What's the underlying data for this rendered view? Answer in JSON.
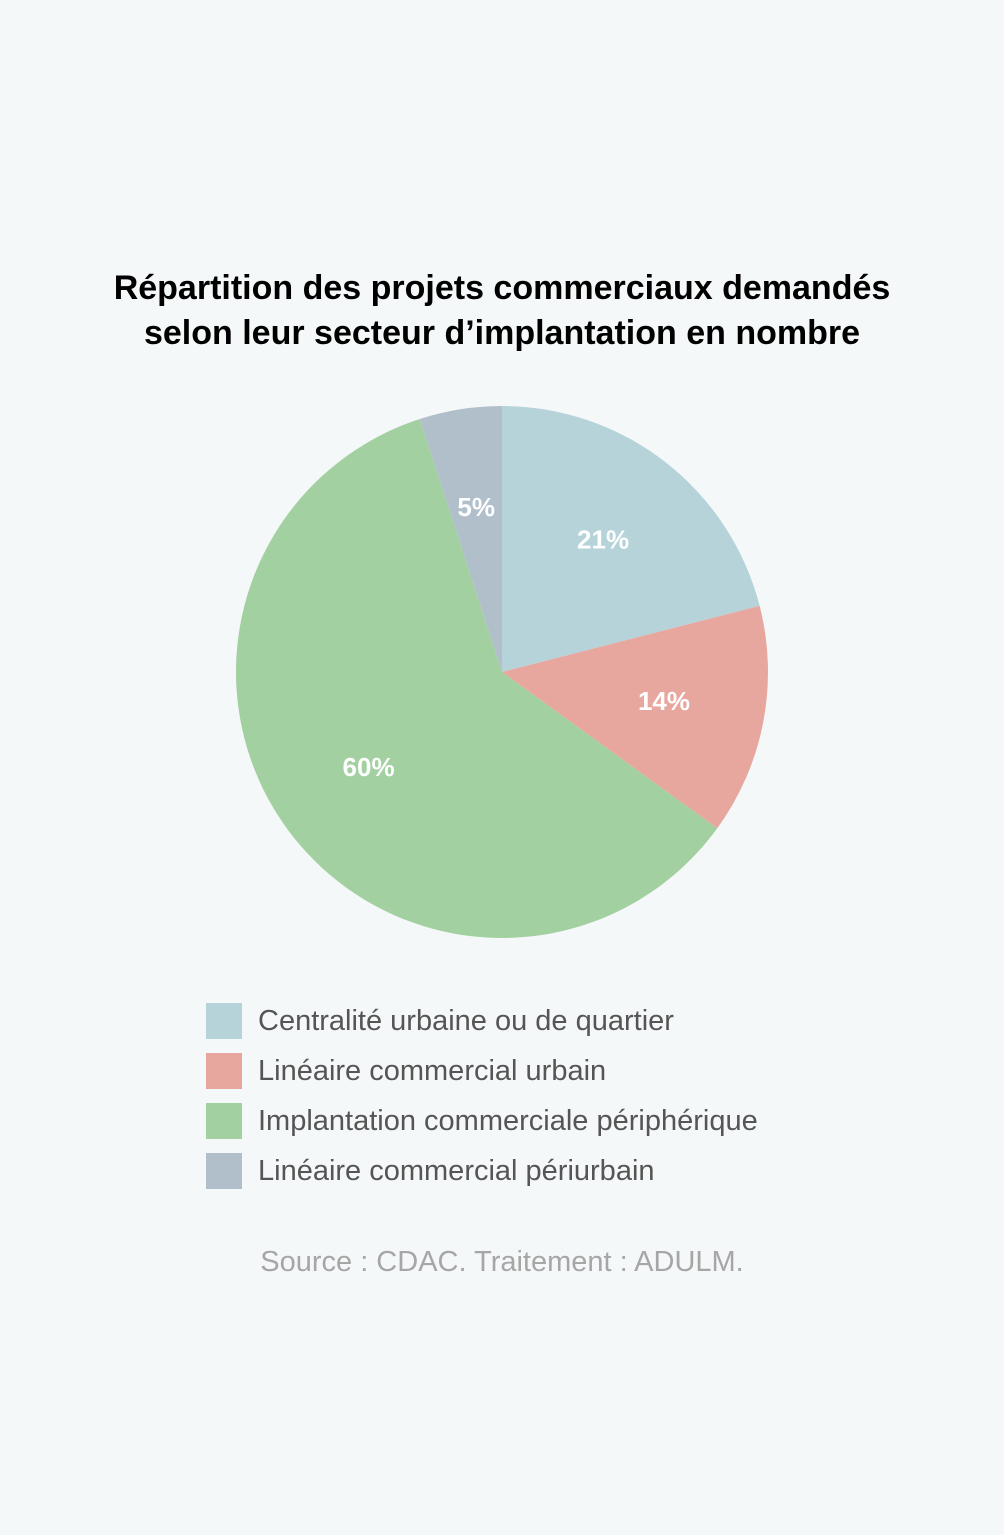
{
  "chart_data": {
    "type": "pie",
    "title_lines": [
      "Répartition des projets commerciaux demandés",
      "selon leur secteur d’implantation en nombre"
    ],
    "slices": [
      {
        "label": "Centralité urbaine ou de quartier",
        "value": 21,
        "display": "21%",
        "color": "#b5d3d9"
      },
      {
        "label": "Linéaire commercial urbain",
        "value": 14,
        "display": "14%",
        "color": "#e8a79e"
      },
      {
        "label": "Implantation commerciale périphérique",
        "value": 60,
        "display": "60%",
        "color": "#a3d0a0"
      },
      {
        "label": "Linéaire commercial périurbain",
        "value": 5,
        "display": "5%",
        "color": "#b1bfcb"
      }
    ],
    "legend_position": "bottom",
    "source": "Source : CDAC. Traitement : ADULM."
  }
}
